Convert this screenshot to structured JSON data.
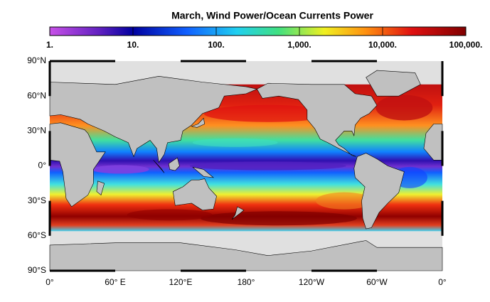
{
  "header": {
    "title": "March, Wind Power/Ocean Currents Power"
  },
  "colorbar": {
    "labels": [
      "1.",
      "10.",
      "100.",
      "1,000.",
      "10,000.",
      "100,000."
    ]
  },
  "map": {
    "lat_labels": [
      "90°N",
      "60°N",
      "30°N",
      "0°",
      "30°S",
      "60°S",
      "90°S"
    ],
    "lon_labels": [
      "0°",
      "60° E",
      "120°E",
      "180°",
      "120°W",
      "60°W",
      "0°"
    ]
  }
}
